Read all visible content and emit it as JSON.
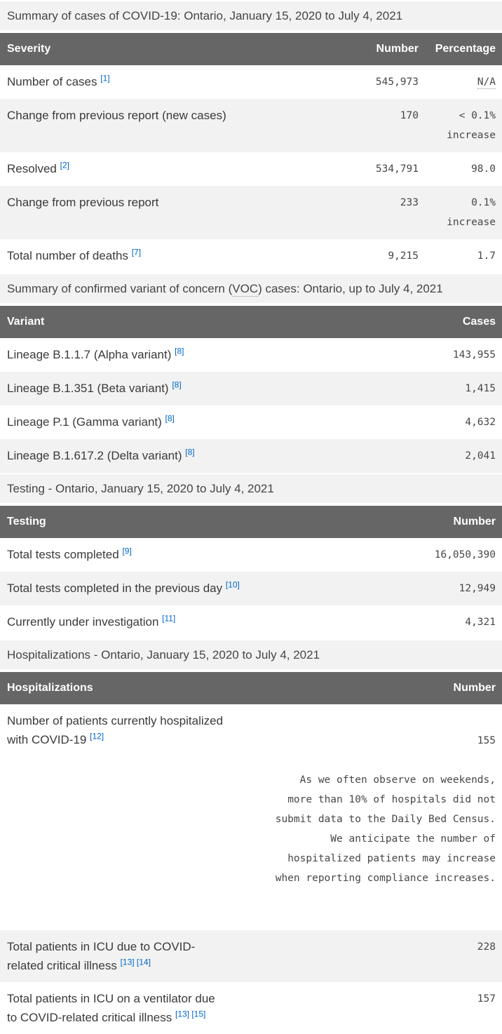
{
  "colors": {
    "table_header_bg": "#666666",
    "stripe_bg": "#f2f2f2",
    "link_blue": "#0066cc",
    "header_text": "#ffffff",
    "body_text": "#3a3a3a"
  },
  "severity_section": {
    "caption": "Summary of cases of COVID-19: Ontario, January 15, 2020 to July 4, 2021",
    "columns": {
      "label": "Severity",
      "number": "Number",
      "percentage": "Percentage"
    },
    "rows": [
      {
        "label": "Number of cases",
        "footnote": "[1]",
        "number": "545,973",
        "percentage": "N/A"
      },
      {
        "label": "Change from previous report (new cases)",
        "number": "170",
        "percentage": "< 0.1%\nincrease"
      },
      {
        "label": "Resolved",
        "footnote": "[2]",
        "number": "534,791",
        "percentage": "98.0"
      },
      {
        "label": "Change from previous report",
        "number": "233",
        "percentage": "0.1%\nincrease"
      },
      {
        "label": "Total number of deaths",
        "footnote": "[7]",
        "number": "9,215",
        "percentage": "1.7"
      }
    ]
  },
  "voc_section": {
    "caption_pre": "Summary of confirmed variant of concern (",
    "caption_abbr": "VOC",
    "caption_post": ") cases: Ontario, up to July 4, 2021",
    "columns": {
      "label": "Variant",
      "number": "Cases"
    },
    "rows": [
      {
        "label": "Lineage B.1.1.7 (Alpha variant)",
        "footnote": "[8]",
        "number": "143,955"
      },
      {
        "label": "Lineage B.1.351 (Beta variant)",
        "footnote": "[8]",
        "number": "1,415"
      },
      {
        "label": "Lineage P.1 (Gamma variant)",
        "footnote": "[8]",
        "number": "4,632"
      },
      {
        "label": "Lineage B.1.617.2 (Delta variant)",
        "footnote": "[8]",
        "number": "2,041"
      }
    ]
  },
  "testing_section": {
    "caption": "Testing - Ontario, January 15, 2020 to July 4, 2021",
    "columns": {
      "label": "Testing",
      "number": "Number"
    },
    "rows": [
      {
        "label": "Total tests completed",
        "footnote": "[9]",
        "number": "16,050,390"
      },
      {
        "label": "Total tests completed in the previous day",
        "footnote": "[10]",
        "number": "12,949"
      },
      {
        "label": "Currently under investigation",
        "footnote": "[11]",
        "number": "4,321"
      }
    ]
  },
  "hospitalizations_section": {
    "caption": "Hospitalizations - Ontario, January 15, 2020 to July 4, 2021",
    "columns": {
      "label": "Hospitalizations",
      "number": "Number"
    },
    "rows": [
      {
        "label": "Number of patients currently hospitalized with COVID-19",
        "footnote": "[12]",
        "number": "155",
        "note": "As we often observe on weekends,\nmore than 10% of hospitals did not\nsubmit data to the Daily Bed Census.\nWe anticipate the number of\nhospitalized patients may increase\nwhen reporting compliance increases."
      },
      {
        "label": "Total patients in ICU due to COVID-related critical illness",
        "footnote": "[13] [14]",
        "number": "228"
      },
      {
        "label": "Total patients in ICU on a ventilator due to COVID-related critical illness",
        "footnote": "[13] [15]",
        "number": "157"
      }
    ]
  }
}
